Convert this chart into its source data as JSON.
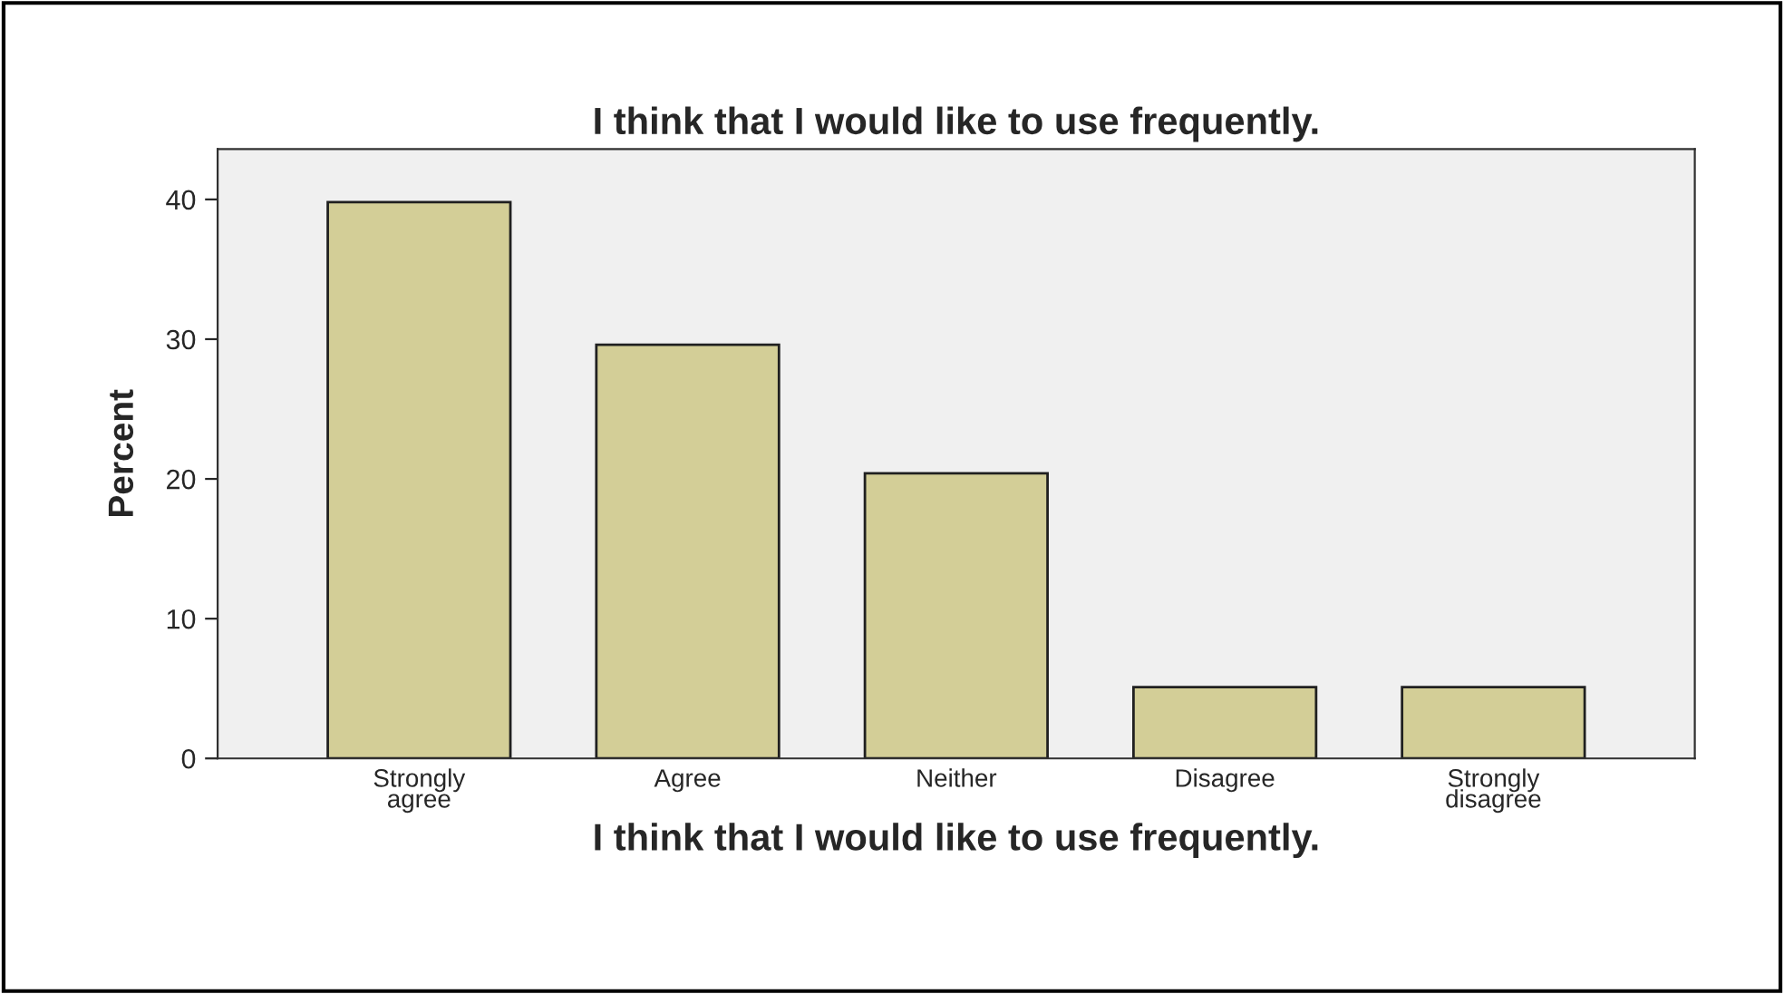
{
  "chart_data": {
    "type": "bar",
    "title": "I think that I would like to use frequently.",
    "xlabel": "I think that I would like to use frequently.",
    "ylabel": "Percent",
    "categories": [
      "Strongly\nagree",
      "Agree",
      "Neither",
      "Disagree",
      "Strongly\ndisagree"
    ],
    "values": [
      39.8,
      29.6,
      20.4,
      5.1,
      5.1
    ],
    "color": "#d3ce97",
    "ylim": [
      0,
      43.6
    ],
    "yticks": [
      0,
      10,
      20,
      30,
      40
    ],
    "grid": false
  }
}
